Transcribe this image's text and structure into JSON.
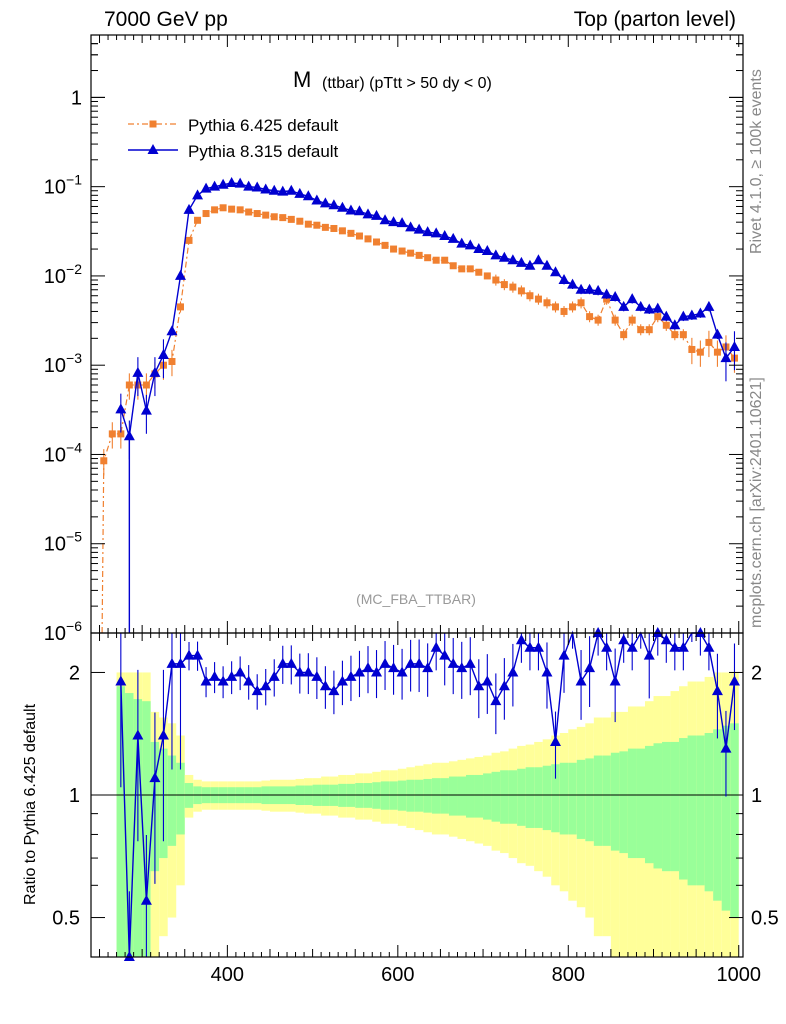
{
  "header": {
    "left": "7000 GeV pp",
    "right": "Top (parton level)"
  },
  "side_labels": {
    "rivet": "Rivet 4.1.0, ≥ 100k events",
    "mcplots": "mcplots.cern.ch [arXiv:2401.10621]"
  },
  "colors": {
    "pythia6": "#f08030",
    "pythia8": "#0000d0",
    "band_inner": "#99ff99",
    "band_outer": "#ffff99"
  },
  "chart_data": {
    "type": "line",
    "title_main": "M",
    "title_sub": "(ttbar)  (pTtt > 50 dy < 0)",
    "watermark": "(MC_FBA_TTBAR)",
    "xlim": [
      240,
      1005
    ],
    "xticks": [
      "400",
      "600",
      "800",
      "1000"
    ],
    "top": {
      "yscale": "log",
      "ylim": [
        1e-06,
        5
      ],
      "yticks": [
        {
          "base": "1",
          "exp": ""
        },
        {
          "base": "10",
          "exp": "−1"
        },
        {
          "base": "10",
          "exp": "−2"
        },
        {
          "base": "10",
          "exp": "−3"
        },
        {
          "base": "10",
          "exp": "−4"
        },
        {
          "base": "10",
          "exp": "−5"
        },
        {
          "base": "10",
          "exp": "−6"
        }
      ]
    },
    "legend": {
      "placement": "top-left",
      "entries": [
        "Pythia 6.425 default",
        "Pythia 8.315 default"
      ]
    },
    "series": [
      {
        "name": "Pythia 6.425 default",
        "marker": "square",
        "style": "dash-dot",
        "x": [
          255,
          265,
          275,
          285,
          295,
          305,
          315,
          325,
          335,
          345,
          355,
          365,
          375,
          385,
          395,
          405,
          415,
          425,
          435,
          445,
          455,
          465,
          475,
          485,
          495,
          505,
          515,
          525,
          535,
          545,
          555,
          565,
          575,
          585,
          595,
          605,
          615,
          625,
          635,
          645,
          655,
          665,
          675,
          685,
          695,
          705,
          715,
          725,
          735,
          745,
          755,
          765,
          775,
          785,
          795,
          805,
          815,
          825,
          835,
          845,
          855,
          865,
          875,
          885,
          895,
          905,
          915,
          925,
          935,
          945,
          955,
          965,
          975,
          985,
          995
        ],
        "values": [
          8.5e-05,
          0.00017,
          0.00017,
          0.0006,
          0.0006,
          0.0006,
          0.0008,
          0.001,
          0.0011,
          0.0045,
          0.025,
          0.042,
          0.05,
          0.055,
          0.058,
          0.056,
          0.055,
          0.052,
          0.05,
          0.048,
          0.046,
          0.045,
          0.043,
          0.041,
          0.038,
          0.037,
          0.035,
          0.034,
          0.032,
          0.03,
          0.028,
          0.026,
          0.024,
          0.022,
          0.02,
          0.019,
          0.018,
          0.017,
          0.016,
          0.015,
          0.015,
          0.013,
          0.012,
          0.012,
          0.011,
          0.01,
          0.009,
          0.008,
          0.0075,
          0.0068,
          0.006,
          0.0055,
          0.005,
          0.0045,
          0.004,
          0.0045,
          0.005,
          0.0035,
          0.0032,
          0.0055,
          0.0032,
          0.0022,
          0.0032,
          0.0025,
          0.0025,
          0.0035,
          0.0028,
          0.0022,
          0.0022,
          0.0015,
          0.0014,
          0.0018,
          0.0014,
          0.0016,
          0.0012
        ]
      },
      {
        "name": "Pythia 8.315 default",
        "marker": "triangle",
        "style": "solid",
        "x": [
          275,
          285,
          295,
          305,
          315,
          325,
          335,
          345,
          355,
          365,
          375,
          385,
          395,
          405,
          415,
          425,
          435,
          445,
          455,
          465,
          475,
          485,
          495,
          505,
          515,
          525,
          535,
          545,
          555,
          565,
          575,
          585,
          595,
          605,
          615,
          625,
          635,
          645,
          655,
          665,
          675,
          685,
          695,
          705,
          715,
          725,
          735,
          745,
          755,
          765,
          775,
          785,
          795,
          805,
          815,
          825,
          835,
          845,
          855,
          865,
          875,
          885,
          895,
          905,
          915,
          925,
          935,
          945,
          955,
          965,
          975,
          985,
          995
        ],
        "values": [
          0.00032,
          0.00016,
          0.00082,
          0.00031,
          0.00082,
          0.0013,
          0.0024,
          0.01,
          0.055,
          0.08,
          0.095,
          0.1,
          0.105,
          0.11,
          0.108,
          0.1,
          0.098,
          0.093,
          0.09,
          0.088,
          0.09,
          0.083,
          0.078,
          0.07,
          0.065,
          0.062,
          0.058,
          0.054,
          0.053,
          0.049,
          0.047,
          0.042,
          0.04,
          0.039,
          0.035,
          0.033,
          0.031,
          0.03,
          0.028,
          0.026,
          0.023,
          0.022,
          0.02,
          0.019,
          0.017,
          0.016,
          0.015,
          0.014,
          0.013,
          0.015,
          0.013,
          0.011,
          0.009,
          0.008,
          0.007,
          0.007,
          0.0068,
          0.0062,
          0.0058,
          0.0045,
          0.0055,
          0.0045,
          0.0042,
          0.0043,
          0.0035,
          0.0028,
          0.0035,
          0.0036,
          0.0038,
          0.0045,
          0.0022,
          0.0012,
          0.0016
        ]
      }
    ],
    "ratio": {
      "ylabel": "Ratio to Pythia 6.425 default",
      "yscale": "log",
      "ylim": [
        0.4,
        2.5
      ],
      "yticks": [
        "0.5",
        "1",
        "2"
      ],
      "x": [
        275,
        285,
        295,
        305,
        315,
        325,
        335,
        345,
        355,
        365,
        375,
        385,
        395,
        405,
        415,
        425,
        435,
        445,
        455,
        465,
        475,
        485,
        495,
        505,
        515,
        525,
        535,
        545,
        555,
        565,
        575,
        585,
        595,
        605,
        615,
        625,
        635,
        645,
        655,
        665,
        675,
        685,
        695,
        705,
        715,
        725,
        735,
        745,
        755,
        765,
        775,
        785,
        795,
        805,
        815,
        825,
        835,
        845,
        855,
        865,
        875,
        885,
        895,
        905,
        915,
        925,
        935,
        945,
        955,
        965,
        975,
        985,
        995
      ],
      "values": [
        1.9,
        0.4,
        1.4,
        0.55,
        1.1,
        1.4,
        2.1,
        2.1,
        2.2,
        2.2,
        1.9,
        1.95,
        1.9,
        1.95,
        2.0,
        1.9,
        1.8,
        1.85,
        1.95,
        2.1,
        2.1,
        2.0,
        2.0,
        1.95,
        1.85,
        1.8,
        1.9,
        1.95,
        2.0,
        2.05,
        2.0,
        2.1,
        2.05,
        2.0,
        2.1,
        2.1,
        2.05,
        2.3,
        2.2,
        2.1,
        2.05,
        2.1,
        1.85,
        1.9,
        1.7,
        1.85,
        2.0,
        2.4,
        2.3,
        2.3,
        2.0,
        1.35,
        2.2,
        2.6,
        1.9,
        2.05,
        2.5,
        2.3,
        1.9,
        2.4,
        2.3,
        2.6,
        2.2,
        2.5,
        2.4,
        2.3,
        2.3,
        2.7,
        2.5,
        2.3,
        1.8,
        1.3,
        1.9
      ],
      "band_inner": [
        0.85,
        0.78,
        0.72,
        0.7,
        0.35,
        0.3,
        0.25,
        0.2,
        0.07,
        0.05,
        0.045,
        0.045,
        0.045,
        0.045,
        0.045,
        0.045,
        0.045,
        0.05,
        0.05,
        0.05,
        0.05,
        0.055,
        0.055,
        0.06,
        0.06,
        0.06,
        0.065,
        0.065,
        0.07,
        0.07,
        0.075,
        0.08,
        0.08,
        0.085,
        0.09,
        0.09,
        0.095,
        0.1,
        0.1,
        0.11,
        0.11,
        0.12,
        0.12,
        0.13,
        0.14,
        0.15,
        0.15,
        0.16,
        0.17,
        0.17,
        0.18,
        0.19,
        0.2,
        0.2,
        0.22,
        0.23,
        0.25,
        0.25,
        0.27,
        0.28,
        0.3,
        0.3,
        0.32,
        0.34,
        0.35,
        0.35,
        0.38,
        0.4,
        0.4,
        0.42,
        0.45,
        0.48,
        0.5
      ],
      "band_outer": [
        1.0,
        1.0,
        1.0,
        1.0,
        0.6,
        0.55,
        0.5,
        0.4,
        0.12,
        0.09,
        0.08,
        0.08,
        0.08,
        0.08,
        0.08,
        0.08,
        0.08,
        0.085,
        0.09,
        0.09,
        0.09,
        0.095,
        0.1,
        0.1,
        0.11,
        0.11,
        0.12,
        0.12,
        0.13,
        0.13,
        0.14,
        0.15,
        0.15,
        0.16,
        0.17,
        0.18,
        0.19,
        0.2,
        0.2,
        0.21,
        0.22,
        0.23,
        0.24,
        0.25,
        0.27,
        0.28,
        0.3,
        0.32,
        0.33,
        0.35,
        0.37,
        0.4,
        0.42,
        0.45,
        0.47,
        0.5,
        0.55,
        0.55,
        0.6,
        0.6,
        0.65,
        0.65,
        0.7,
        0.75,
        0.75,
        0.8,
        0.85,
        0.9,
        0.9,
        0.95,
        1.0,
        1.0,
        1.0
      ]
    }
  }
}
